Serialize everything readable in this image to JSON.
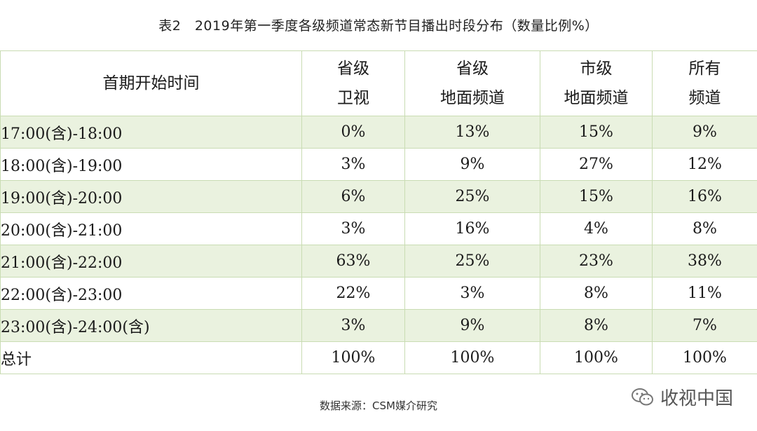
{
  "title": "表2　2019年第一季度各级频道常态新节目播出时段分布（数量比例%）",
  "headers": [
    [
      "首期开始时间"
    ],
    [
      "省级",
      "卫视"
    ],
    [
      "省级",
      "地面频道"
    ],
    [
      "市级",
      "地面频道"
    ],
    [
      "所有",
      "频道"
    ]
  ],
  "rows": [
    [
      "17:00(含)-18:00",
      "0%",
      "13%",
      "15%",
      "9%"
    ],
    [
      "18:00(含)-19:00",
      "3%",
      "9%",
      "27%",
      "12%"
    ],
    [
      "19:00(含)-20:00",
      "6%",
      "25%",
      "15%",
      "16%"
    ],
    [
      "20:00(含)-21:00",
      "3%",
      "16%",
      "4%",
      "8%"
    ],
    [
      "21:00(含)-22:00",
      "63%",
      "25%",
      "23%",
      "38%"
    ],
    [
      "22:00(含)-23:00",
      "22%",
      "3%",
      "8%",
      "11%"
    ],
    [
      "23:00(含)-24:00(含)",
      "3%",
      "9%",
      "8%",
      "7%"
    ],
    [
      "总计",
      "100%",
      "100%",
      "100%",
      "100%"
    ]
  ],
  "source": "数据来源：CSM媒介研究",
  "watermark": {
    "icon": "wechat-icon",
    "text": "收视中国"
  },
  "colors": {
    "border": "#c9dcb3",
    "alt_row": "#eaf2df"
  }
}
